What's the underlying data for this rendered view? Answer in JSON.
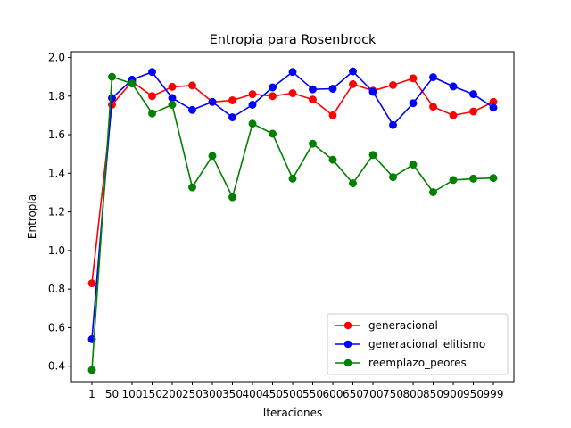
{
  "chart_data": {
    "type": "line",
    "title": "Entropia para Rosenbrock",
    "xlabel": "Iteraciones",
    "ylabel": "Entropia",
    "x": [
      "1",
      "50",
      "100",
      "150",
      "200",
      "250",
      "300",
      "350",
      "400",
      "450",
      "500",
      "550",
      "600",
      "650",
      "700",
      "750",
      "800",
      "850",
      "900",
      "950",
      "999"
    ],
    "ylim": [
      0.32,
      2.03
    ],
    "yticks": [
      "0.4",
      "0.6",
      "0.8",
      "1.0",
      "1.2",
      "1.4",
      "1.6",
      "1.8",
      "2.0"
    ],
    "grid": false,
    "legend_position": "lower-right",
    "series": [
      {
        "name": "generacional",
        "color": "#ff0000",
        "values": [
          0.83,
          1.755,
          1.875,
          1.8,
          1.848,
          1.855,
          1.77,
          1.778,
          1.81,
          1.8,
          1.815,
          1.782,
          1.7,
          1.862,
          1.828,
          1.857,
          1.892,
          1.745,
          1.7,
          1.72,
          1.77
        ]
      },
      {
        "name": "generacional_elitismo",
        "color": "#0000ff",
        "values": [
          0.54,
          1.79,
          1.885,
          1.925,
          1.79,
          1.728,
          1.77,
          1.69,
          1.755,
          1.845,
          1.925,
          1.835,
          1.838,
          1.928,
          1.822,
          1.65,
          1.763,
          1.898,
          1.85,
          1.81,
          1.74
        ]
      },
      {
        "name": "reemplazo_peores",
        "color": "#008000",
        "values": [
          0.38,
          1.9,
          1.865,
          1.71,
          1.755,
          1.327,
          1.49,
          1.276,
          1.657,
          1.605,
          1.372,
          1.553,
          1.47,
          1.348,
          1.495,
          1.38,
          1.445,
          1.302,
          1.365,
          1.372,
          1.375
        ]
      }
    ]
  }
}
